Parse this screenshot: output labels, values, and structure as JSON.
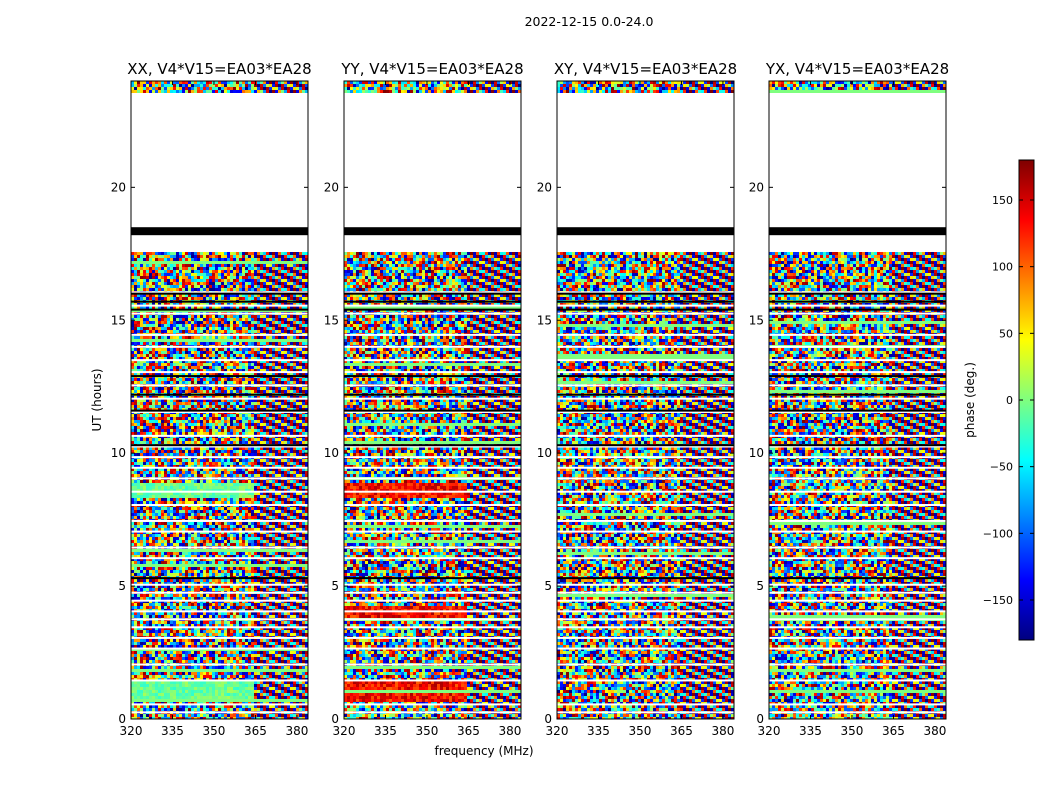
{
  "figure": {
    "suptitle": "2022-12-15 0.0-24.0",
    "xlabel": "frequency (MHz)",
    "ylabel": "UT (hours)",
    "colorbar_label": "phase (deg.)",
    "colorbar_ticks": [
      150,
      100,
      50,
      0,
      -50,
      -100,
      -150
    ],
    "colorbar_tick_labels": [
      "150",
      "100",
      "50",
      "0",
      "−50",
      "−100",
      "−150"
    ],
    "colorbar_range": [
      -180,
      180
    ],
    "colormap": "jet",
    "colormap_stops": [
      "#00007f",
      "#0000ff",
      "#0080ff",
      "#00ffff",
      "#7fff7f",
      "#ffff00",
      "#ff8000",
      "#ff0000",
      "#7f0000"
    ]
  },
  "chart_data": [
    {
      "type": "heatmap",
      "title": "XX, V4*V15=EA03*EA28",
      "xlabel": "",
      "ylabel": "UT (hours)",
      "xlim": [
        320,
        384
      ],
      "ylim": [
        0,
        24
      ],
      "x_ticks": [
        320,
        335,
        350,
        365,
        380
      ],
      "y_ticks": [
        0,
        5,
        10,
        15,
        20
      ],
      "z_label": "phase (deg.)"
    },
    {
      "type": "heatmap",
      "title": "YY, V4*V15=EA03*EA28",
      "xlabel": "frequency (MHz)",
      "ylabel": "",
      "xlim": [
        320,
        384
      ],
      "ylim": [
        0,
        24
      ],
      "x_ticks": [
        320,
        335,
        350,
        365,
        380
      ],
      "y_ticks": [
        0,
        5,
        10,
        15,
        20
      ],
      "z_label": "phase (deg.)"
    },
    {
      "type": "heatmap",
      "title": "XY, V4*V15=EA03*EA28",
      "xlabel": "",
      "ylabel": "",
      "xlim": [
        320,
        384
      ],
      "ylim": [
        0,
        24
      ],
      "x_ticks": [
        320,
        335,
        350,
        365,
        380
      ],
      "y_ticks": [
        0,
        5,
        10,
        15,
        20
      ],
      "z_label": "phase (deg.)"
    },
    {
      "type": "heatmap",
      "title": "YX, V4*V15=EA03*EA28",
      "xlabel": "",
      "ylabel": "",
      "xlim": [
        320,
        384
      ],
      "ylim": [
        0,
        24
      ],
      "x_ticks": [
        320,
        335,
        350,
        365,
        380
      ],
      "y_ticks": [
        0,
        5,
        10,
        15,
        20
      ],
      "z_label": "phase (deg.)"
    }
  ],
  "observations": {
    "blank_ut_ranges": [
      [
        17.6,
        18.2
      ],
      [
        18.5,
        23.6
      ]
    ],
    "flagged_ut_bands": [
      [
        18.2,
        18.5
      ]
    ]
  }
}
